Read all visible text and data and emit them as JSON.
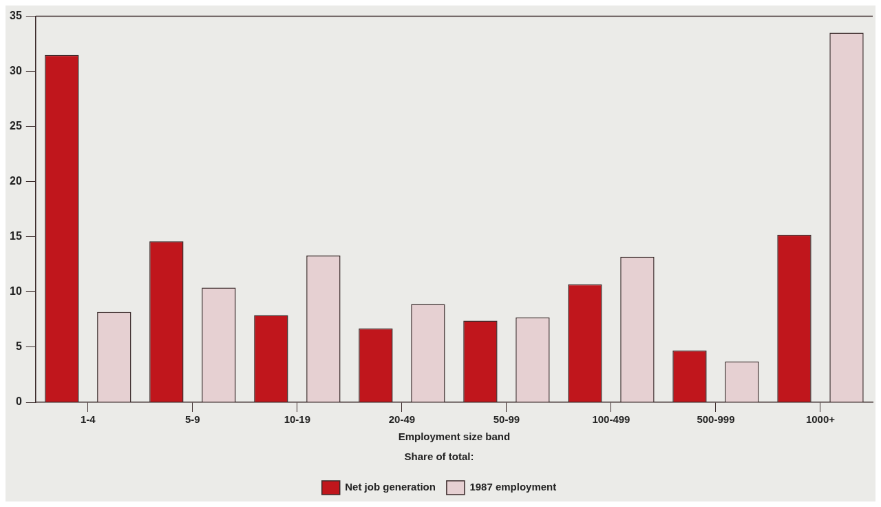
{
  "chart_data": {
    "type": "bar",
    "xlabel": "Employment size band",
    "legend_title": "Share of total:",
    "categories": [
      "1-4",
      "5-9",
      "10-19",
      "20-49",
      "50-99",
      "100-499",
      "500-999",
      "1000+"
    ],
    "series": [
      {
        "name": "Net job generation",
        "color": "#c0161c",
        "values": [
          31.5,
          14.6,
          7.9,
          6.7,
          7.4,
          10.7,
          4.7,
          15.2
        ]
      },
      {
        "name": "1987 employment",
        "color": "#e6d0d2",
        "values": [
          8.2,
          10.4,
          13.3,
          8.9,
          7.7,
          13.2,
          3.7,
          33.5
        ]
      }
    ],
    "ylim": [
      0,
      35
    ],
    "yticks": [
      0,
      5,
      10,
      15,
      20,
      25,
      30,
      35
    ],
    "grid": false,
    "legend": "bottom"
  }
}
